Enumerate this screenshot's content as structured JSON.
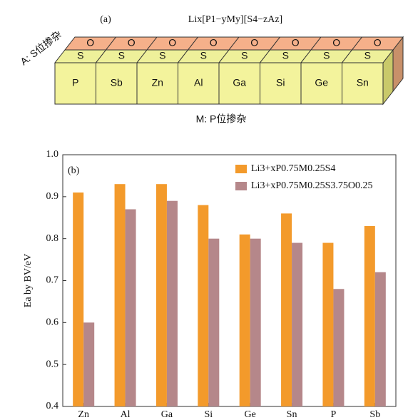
{
  "diagram": {
    "panel_label": "(a)",
    "formula": "Lix[P1−yMy][S4−zAz]",
    "a_site": "A: S位掺杂",
    "m_site": "M: P位掺杂",
    "boxes": [
      "P",
      "Sb",
      "Zn",
      "Al",
      "Ga",
      "Si",
      "Ge",
      "Sn"
    ],
    "s_labels": [
      "S",
      "S",
      "S",
      "S",
      "S",
      "S",
      "S",
      "S"
    ],
    "o_labels": [
      "O",
      "O",
      "O",
      "O",
      "O",
      "O",
      "O",
      "O"
    ]
  },
  "chart_data": {
    "type": "bar",
    "panel_label": "(b)",
    "y_label": "Ea by BV/eV",
    "categories": [
      "Zn",
      "Al",
      "Ga",
      "Si",
      "Ge",
      "Sn",
      "P",
      "Sb"
    ],
    "series": [
      {
        "name": "Li3+xP0.75M0.25S4",
        "color": "#f39a2b",
        "values": [
          0.91,
          0.93,
          0.93,
          0.88,
          0.81,
          0.86,
          0.79,
          0.83
        ]
      },
      {
        "name": "Li3+xP0.75M0.25S3.75O0.25",
        "color": "#b5878a",
        "values": [
          0.6,
          0.87,
          0.89,
          0.8,
          0.8,
          0.79,
          0.68,
          0.72
        ]
      }
    ],
    "ylim": [
      0.4,
      1.0
    ],
    "yticks": [
      0.4,
      0.5,
      0.6,
      0.7,
      0.8,
      0.9,
      {
        "value": 1.0,
        "label": "1.0"
      }
    ],
    "legend": "upper right"
  }
}
